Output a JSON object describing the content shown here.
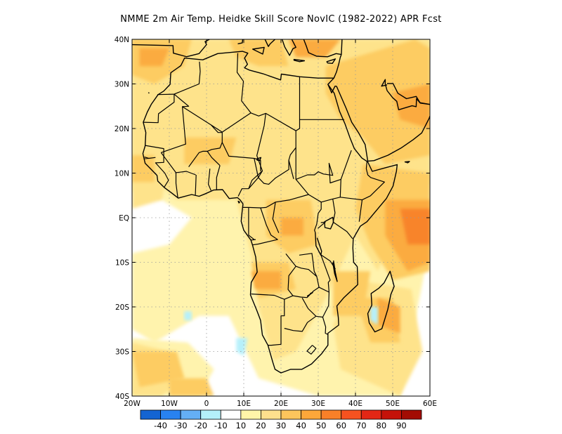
{
  "title": "NMME  2m Air Temp. Heidke Skill Score NovIC (1982-2022) APR Fcst",
  "map": {
    "lon_range": [
      -20,
      60
    ],
    "lat_range": [
      -40,
      40
    ],
    "lat_ticks": [
      {
        "value": 40,
        "label": "40N"
      },
      {
        "value": 30,
        "label": "30N"
      },
      {
        "value": 20,
        "label": "20N"
      },
      {
        "value": 10,
        "label": "10N"
      },
      {
        "value": 0,
        "label": "EQ"
      },
      {
        "value": -10,
        "label": "10S"
      },
      {
        "value": -20,
        "label": "20S"
      },
      {
        "value": -30,
        "label": "30S"
      },
      {
        "value": -40,
        "label": "40S"
      }
    ],
    "lon_ticks": [
      {
        "value": -20,
        "label": "20W"
      },
      {
        "value": -10,
        "label": "10W"
      },
      {
        "value": 0,
        "label": "0"
      },
      {
        "value": 10,
        "label": "10E"
      },
      {
        "value": 20,
        "label": "20E"
      },
      {
        "value": 30,
        "label": "30E"
      },
      {
        "value": 40,
        "label": "40E"
      },
      {
        "value": 50,
        "label": "50E"
      },
      {
        "value": 60,
        "label": "60E"
      }
    ],
    "colors": {
      "c10": "#fff3ad",
      "c20": "#fee38b",
      "c30": "#fdcc62",
      "c40": "#fbab3f",
      "c50": "#f8842a",
      "cneg": "#b6f0fb",
      "coast": "#000000",
      "grid": "#9a9a9a"
    }
  },
  "colorbar": {
    "colors": [
      "#1464d2",
      "#2882f0",
      "#64aff5",
      "#b4f0fa",
      "#ffffff",
      "#fff5a9",
      "#fee08d",
      "#fdc55c",
      "#fca73a",
      "#f98028",
      "#f65220",
      "#e32715",
      "#c51209",
      "#a30c03"
    ],
    "labels": [
      "-40",
      "-30",
      "-20",
      "-10",
      "10",
      "20",
      "30",
      "40",
      "50",
      "60",
      "70",
      "80",
      "90"
    ]
  }
}
